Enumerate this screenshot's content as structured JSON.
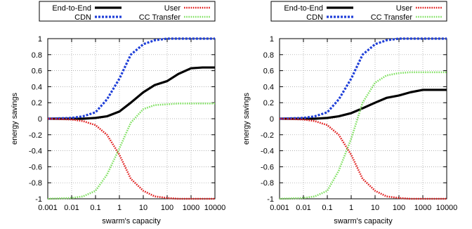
{
  "chart_data": [
    {
      "type": "line",
      "xlabel": "swarm's capacity",
      "ylabel": "energy savings",
      "xscale": "log",
      "xlim": [
        0.001,
        10000
      ],
      "ylim": [
        -1,
        1
      ],
      "xticks": [
        "0.001",
        "0.01",
        "0.1",
        "1",
        "10",
        "100",
        "1000",
        "10000"
      ],
      "yticks": [
        "-1",
        "-0.8",
        "-0.6",
        "-0.4",
        "-0.2",
        "0",
        "0.2",
        "0.4",
        "0.6",
        "0.8",
        "1"
      ],
      "grid": true,
      "legend": "top, two columns",
      "series": [
        {
          "name": "End-to-End",
          "color": "#000000",
          "style": "solid",
          "x": [
            0.001,
            0.01,
            0.03,
            0.1,
            0.3,
            1,
            3,
            10,
            30,
            100,
            300,
            1000,
            3000,
            10000
          ],
          "y": [
            0,
            0,
            0,
            0.01,
            0.03,
            0.09,
            0.2,
            0.33,
            0.42,
            0.47,
            0.56,
            0.63,
            0.64,
            0.64
          ]
        },
        {
          "name": "CDN",
          "color": "#1f3fd8",
          "style": "dashed",
          "x": [
            0.001,
            0.01,
            0.03,
            0.1,
            0.3,
            1,
            3,
            10,
            30,
            100,
            300,
            1000,
            3000,
            10000
          ],
          "y": [
            0,
            0.01,
            0.03,
            0.08,
            0.24,
            0.5,
            0.8,
            0.93,
            0.98,
            1.0,
            1.0,
            1.0,
            1.0,
            1.0
          ]
        },
        {
          "name": "User",
          "color": "#e01818",
          "style": "dotted",
          "x": [
            0.001,
            0.01,
            0.03,
            0.1,
            0.3,
            1,
            3,
            10,
            30,
            100,
            300,
            1000,
            3000,
            10000
          ],
          "y": [
            0,
            -0.01,
            -0.03,
            -0.08,
            -0.2,
            -0.45,
            -0.75,
            -0.9,
            -0.97,
            -0.99,
            -1.0,
            -1.0,
            -1.0,
            -1.0
          ]
        },
        {
          "name": "CC Transfer",
          "color": "#7fe060",
          "style": "dotted",
          "x": [
            0.001,
            0.01,
            0.03,
            0.1,
            0.3,
            1,
            3,
            10,
            30,
            100,
            300,
            1000,
            3000,
            10000
          ],
          "y": [
            -1,
            -0.99,
            -0.97,
            -0.9,
            -0.7,
            -0.37,
            -0.05,
            0.12,
            0.17,
            0.18,
            0.19,
            0.19,
            0.19,
            0.19
          ]
        }
      ]
    },
    {
      "type": "line",
      "xlabel": "swarm's capacity",
      "ylabel": "energy savings",
      "xscale": "log",
      "xlim": [
        0.001,
        10000
      ],
      "ylim": [
        -1,
        1
      ],
      "xticks": [
        "0.001",
        "0.01",
        "0.1",
        "1",
        "10",
        "100",
        "1000",
        "10000"
      ],
      "yticks": [
        "-1",
        "-0.8",
        "-0.6",
        "-0.4",
        "-0.2",
        "0",
        "0.2",
        "0.4",
        "0.6",
        "0.8",
        "1"
      ],
      "grid": true,
      "legend": "top, two columns",
      "series": [
        {
          "name": "End-to-End",
          "color": "#000000",
          "style": "solid",
          "x": [
            0.001,
            0.01,
            0.03,
            0.1,
            0.3,
            1,
            3,
            10,
            30,
            100,
            300,
            1000,
            3000,
            10000
          ],
          "y": [
            0,
            0,
            0,
            0.01,
            0.03,
            0.07,
            0.13,
            0.2,
            0.26,
            0.29,
            0.33,
            0.36,
            0.36,
            0.36
          ]
        },
        {
          "name": "CDN",
          "color": "#1f3fd8",
          "style": "dashed",
          "x": [
            0.001,
            0.01,
            0.03,
            0.1,
            0.3,
            1,
            3,
            10,
            30,
            100,
            300,
            1000,
            3000,
            10000
          ],
          "y": [
            0,
            0.01,
            0.03,
            0.08,
            0.24,
            0.5,
            0.8,
            0.93,
            0.98,
            1.0,
            1.0,
            1.0,
            1.0,
            1.0
          ]
        },
        {
          "name": "User",
          "color": "#e01818",
          "style": "dotted",
          "x": [
            0.001,
            0.01,
            0.03,
            0.1,
            0.3,
            1,
            3,
            10,
            30,
            100,
            300,
            1000,
            3000,
            10000
          ],
          "y": [
            0,
            -0.01,
            -0.03,
            -0.08,
            -0.2,
            -0.45,
            -0.75,
            -0.9,
            -0.97,
            -0.99,
            -1.0,
            -1.0,
            -1.0,
            -1.0
          ]
        },
        {
          "name": "CC Transfer",
          "color": "#7fe060",
          "style": "dotted",
          "x": [
            0.001,
            0.01,
            0.03,
            0.1,
            0.3,
            1,
            3,
            10,
            30,
            100,
            300,
            1000,
            3000,
            10000
          ],
          "y": [
            -1,
            -0.99,
            -0.97,
            -0.9,
            -0.65,
            -0.25,
            0.2,
            0.45,
            0.54,
            0.57,
            0.58,
            0.58,
            0.58,
            0.58
          ]
        }
      ]
    }
  ]
}
